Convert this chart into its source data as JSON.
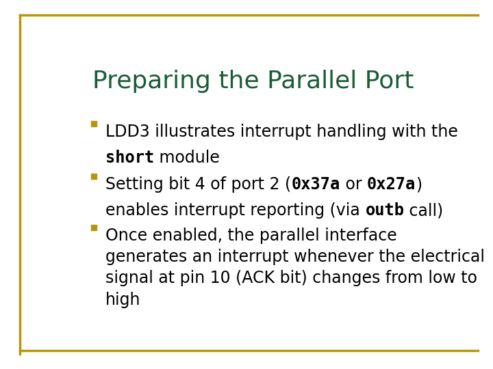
{
  "title": "Preparing the Parallel Port",
  "title_color": "#1a5c38",
  "title_fontsize": 26,
  "background_color": "#ffffff",
  "border_color": "#b8960c",
  "bullet_color": "#b8960c",
  "body_fontsize": 17,
  "body_color": "#000000",
  "mono_fontsize": 17,
  "bullet1_line1": "LDD3 illustrates interrupt handling with the",
  "bullet1_mono": "short",
  "bullet1_suffix": " module",
  "bullet2_pre": "Setting bit 4 of port 2 (",
  "bullet2_mono1": "0x37a",
  "bullet2_mid": " or ",
  "bullet2_mono2": "0x27a",
  "bullet2_post": ")",
  "bullet2_line2_pre": "enables interrupt reporting (via ",
  "bullet2_mono3": "outb",
  "bullet2_line2_post": " call)",
  "bullet3": "Once enabled, the parallel interface\ngenerates an interrupt whenever the electrical\nsignal at pin 10 (ACK bit) changes from low to\nhigh"
}
